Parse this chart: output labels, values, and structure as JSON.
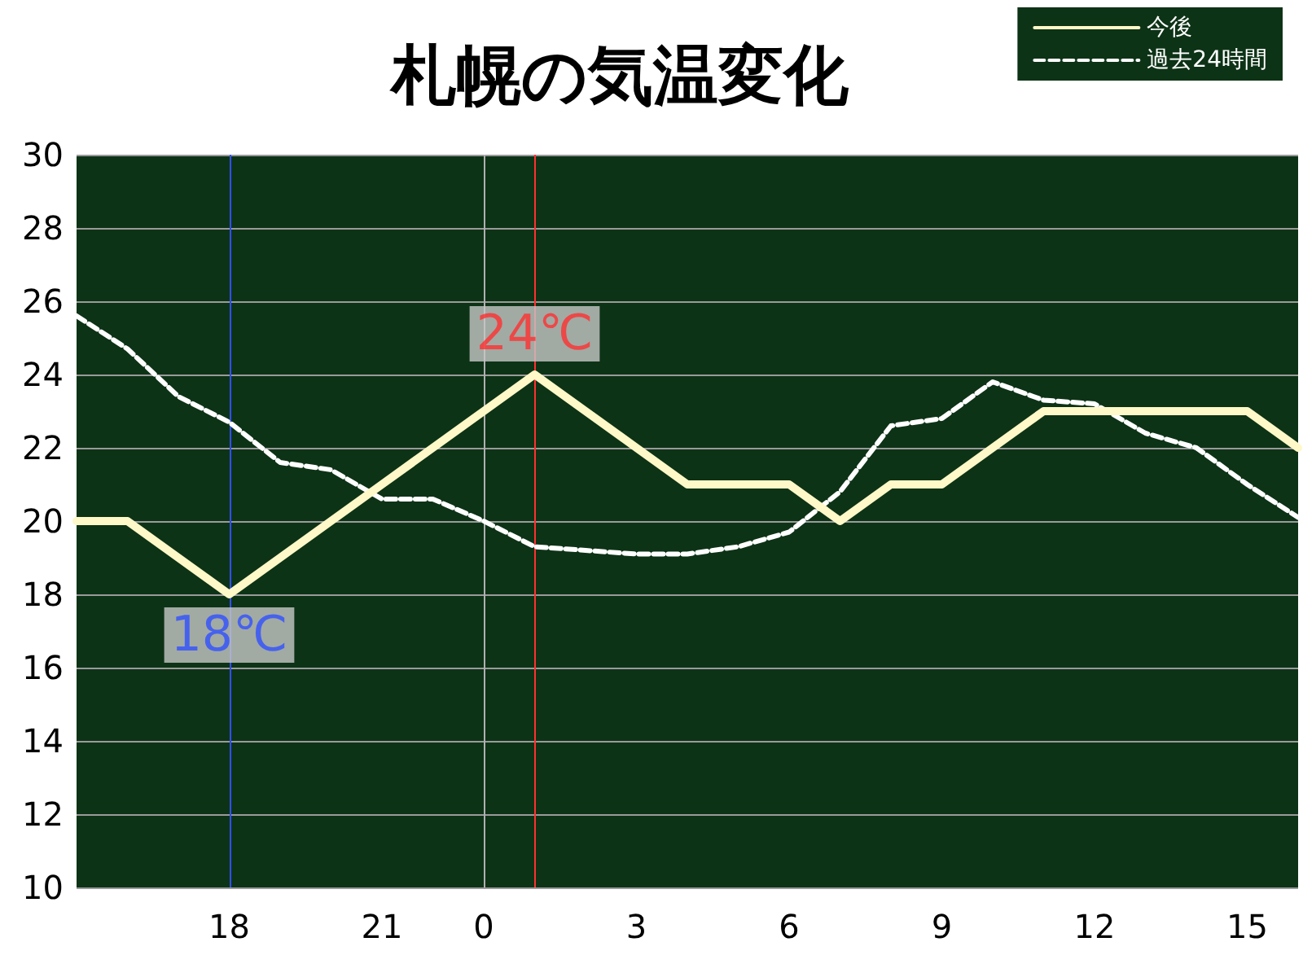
{
  "chart_data": {
    "type": "line",
    "title": "札幌の気温変化",
    "categories": [
      null,
      null,
      null,
      "18",
      null,
      null,
      "21",
      null,
      "0",
      null,
      null,
      "3",
      null,
      null,
      "6",
      null,
      null,
      "9",
      null,
      null,
      "12",
      null,
      null,
      "15",
      null
    ],
    "ylim": [
      10,
      30
    ],
    "yticks": [
      10,
      12,
      14,
      16,
      18,
      20,
      22,
      24,
      26,
      28,
      30
    ],
    "series": [
      {
        "name": "今後",
        "color": "#fff8c8",
        "line_style": "solid",
        "values": [
          20,
          20,
          19,
          18,
          19,
          20,
          21,
          22,
          23,
          24,
          23,
          22,
          21,
          21,
          21,
          20,
          21,
          21,
          22,
          23,
          23,
          23,
          23,
          23,
          22
        ]
      },
      {
        "name": "過去24時間",
        "color": "#ffffff",
        "line_style": "dashed",
        "values": [
          25.6,
          24.7,
          23.4,
          22.7,
          21.6,
          21.4,
          20.6,
          20.6,
          20.0,
          19.3,
          19.2,
          19.1,
          19.1,
          19.3,
          19.7,
          20.8,
          22.6,
          22.8,
          23.8,
          23.3,
          23.2,
          22.4,
          22.0,
          21.0,
          20.1
        ]
      }
    ],
    "ref_lines": [
      {
        "axis": "x",
        "value": "18",
        "color": "#3050ff"
      },
      {
        "axis": "x",
        "value": "0",
        "color": "#b0b0b0"
      }
    ],
    "annotations": [
      {
        "text": "24℃",
        "y": 24
      },
      {
        "text": "18℃",
        "x": "18",
        "y": 18
      }
    ],
    "grid": "y",
    "legend": "top right",
    "marker": "none"
  }
}
